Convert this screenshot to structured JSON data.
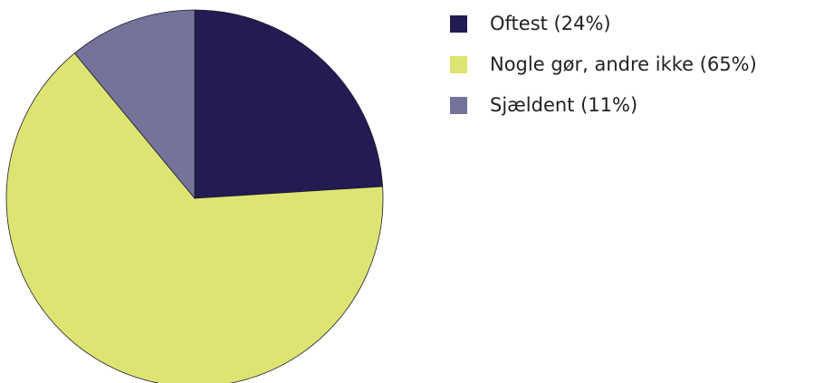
{
  "chart_data": {
    "type": "pie",
    "categories": [
      "Oftest (24%)",
      "Nogle gør, andre ikke (65%)",
      "Sjældent (11%)"
    ],
    "values": [
      24,
      65,
      11
    ],
    "colors": [
      "#221c52",
      "#dee472",
      "#74739a"
    ],
    "legend_placement": "right"
  }
}
